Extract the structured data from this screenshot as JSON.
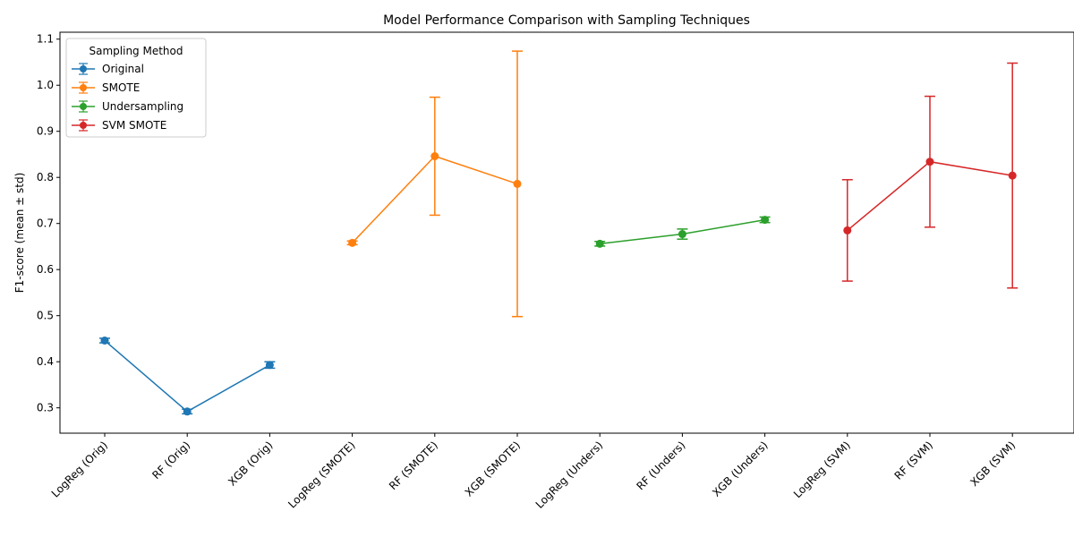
{
  "chart_data": {
    "type": "line",
    "title": "Model Performance Comparison with Sampling Techniques",
    "xlabel": "",
    "ylabel": "F1-score (mean ± std)",
    "ylim": [
      0.245,
      1.115
    ],
    "yticks": [
      0.3,
      0.4,
      0.5,
      0.6,
      0.7,
      0.8,
      0.9,
      1.0,
      1.1
    ],
    "ytick_labels": [
      "0.3",
      "0.4",
      "0.5",
      "0.6",
      "0.7",
      "0.8",
      "0.9",
      "1.0",
      "1.1"
    ],
    "categories": [
      "LogReg (Orig)",
      "RF (Orig)",
      "XGB (Orig)",
      "LogReg (SMOTE)",
      "RF (SMOTE)",
      "XGB (SMOTE)",
      "LogReg (Unders)",
      "RF (Unders)",
      "XGB (Unders)",
      "LogReg (SVM)",
      "RF (SVM)",
      "XGB (SVM)"
    ],
    "grid": false,
    "legend_title": "Sampling Method",
    "legend_position": "top-left",
    "series": [
      {
        "name": "Original",
        "color": "#1f77b4",
        "x": [
          0,
          1,
          2
        ],
        "mean": [
          0.446,
          0.292,
          0.393
        ],
        "std": [
          0.005,
          0.005,
          0.007
        ]
      },
      {
        "name": "SMOTE",
        "color": "#ff7f0e",
        "x": [
          3,
          4,
          5
        ],
        "mean": [
          0.658,
          0.846,
          0.786
        ],
        "std": [
          0.004,
          0.128,
          0.288
        ]
      },
      {
        "name": "Undersampling",
        "color": "#2ca02c",
        "x": [
          6,
          7,
          8
        ],
        "mean": [
          0.656,
          0.677,
          0.708
        ],
        "std": [
          0.005,
          0.011,
          0.006
        ]
      },
      {
        "name": "SVM SMOTE",
        "color": "#d62728",
        "x": [
          9,
          10,
          11
        ],
        "mean": [
          0.685,
          0.834,
          0.804
        ],
        "std": [
          0.11,
          0.142,
          0.244
        ]
      }
    ]
  }
}
